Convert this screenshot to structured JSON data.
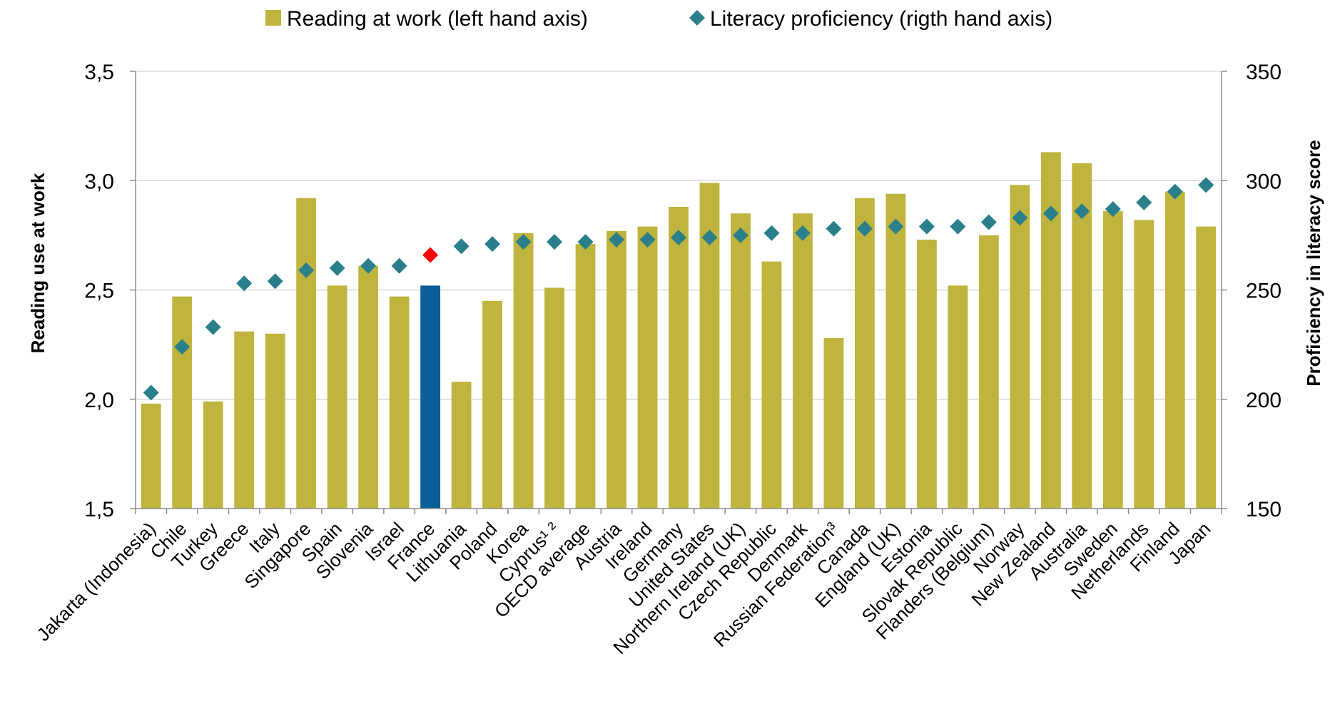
{
  "chart_data": {
    "type": "bar",
    "categories": [
      "Jakarta (Indonesia)",
      "Chile",
      "Turkey",
      "Greece",
      "Italy",
      "Singapore",
      "Spain",
      "Slovenia",
      "Israel",
      "France",
      "Lithuania",
      "Poland",
      "Korea",
      "Cyprus¹ ²",
      "OECD average",
      "Austria",
      "Ireland",
      "Germany",
      "United States",
      "Northern Ireland (UK)",
      "Czech Republic",
      "Denmark",
      "Russian Federation³",
      "Canada",
      "England (UK)",
      "Estonia",
      "Slovak Republic",
      "Flanders (Belgium)",
      "Norway",
      "New Zealand",
      "Australia",
      "Sweden",
      "Netherlands",
      "Finland",
      "Japan"
    ],
    "series": [
      {
        "name": "Reading at work (left hand axis)",
        "type": "bar",
        "axis": "left",
        "color": "#bfb43d",
        "highlight_index": 9,
        "highlight_color": "#0b6098",
        "values": [
          1.98,
          2.47,
          1.99,
          2.31,
          2.3,
          2.92,
          2.52,
          2.61,
          2.47,
          2.52,
          2.08,
          2.45,
          2.76,
          2.51,
          2.71,
          2.77,
          2.79,
          2.88,
          2.99,
          2.85,
          2.63,
          2.85,
          2.28,
          2.92,
          2.94,
          2.73,
          2.52,
          2.75,
          2.98,
          3.13,
          3.08,
          2.86,
          2.82,
          2.95,
          2.79
        ]
      },
      {
        "name": "Literacy proficiency (rigth hand axis)",
        "type": "scatter",
        "axis": "right",
        "marker": "diamond",
        "color": "#2a7f8a",
        "highlight_index": 9,
        "highlight_color": "#ff0000",
        "values": [
          203,
          224,
          233,
          253,
          254,
          259,
          260,
          261,
          261,
          266,
          270,
          271,
          272,
          272,
          272,
          273,
          273,
          274,
          274,
          275,
          276,
          276,
          278,
          278,
          279,
          279,
          279,
          281,
          283,
          285,
          286,
          287,
          290,
          295,
          298
        ]
      }
    ],
    "ylabel": "Reading use at work",
    "ylabel_right": "Proficiency in literacy score",
    "ylim": [
      1.5,
      3.5
    ],
    "ylim_right": [
      150,
      350
    ],
    "yticks": [
      "1,5",
      "2,0",
      "2,5",
      "3,0",
      "3,5"
    ],
    "yticks_right": [
      "150",
      "200",
      "250",
      "300",
      "350"
    ],
    "grid": true,
    "legend": "top-center"
  }
}
